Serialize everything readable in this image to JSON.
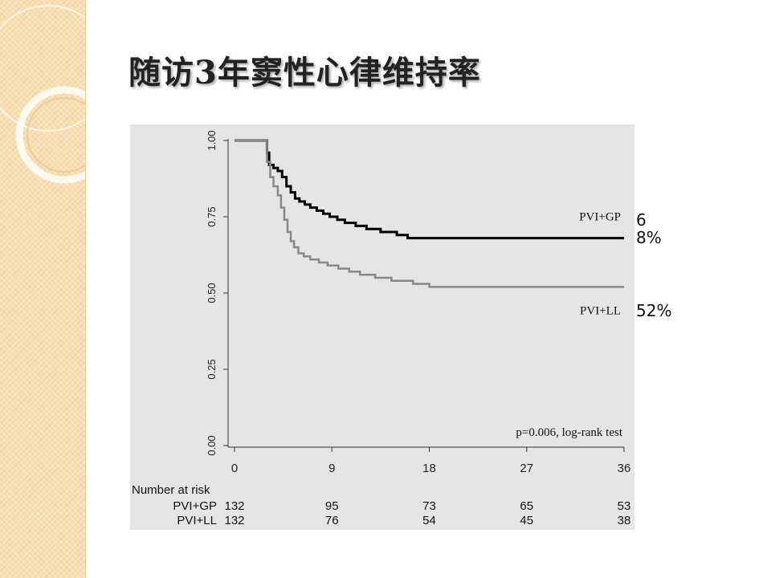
{
  "slide": {
    "title": "随访3年窦性心律维持率",
    "accent_color": "#f7dfb2"
  },
  "annotations": {
    "gp_percent": "68%",
    "ll_percent": "52%"
  },
  "chart_data": {
    "type": "line",
    "title": "",
    "xlabel": "",
    "ylabel": "",
    "xlim": [
      0,
      36
    ],
    "ylim": [
      0,
      1
    ],
    "x_ticks": [
      "0",
      "9",
      "18",
      "27",
      "36"
    ],
    "y_ticks": [
      "0.00",
      "0.25",
      "0.50",
      "0.75",
      "1.00"
    ],
    "background": "#e5e5e5",
    "grid": false,
    "annotation": "p=0.006, log-rank test",
    "series": [
      {
        "name": "PVI+GP",
        "color": "#000000",
        "points": [
          [
            0,
            1.0
          ],
          [
            3.0,
            1.0
          ],
          [
            3.0,
            0.96
          ],
          [
            3.2,
            0.92
          ],
          [
            3.6,
            0.91
          ],
          [
            4.0,
            0.9
          ],
          [
            4.4,
            0.88
          ],
          [
            4.8,
            0.85
          ],
          [
            5.2,
            0.83
          ],
          [
            5.6,
            0.81
          ],
          [
            6.0,
            0.8
          ],
          [
            6.5,
            0.79
          ],
          [
            7.0,
            0.78
          ],
          [
            7.6,
            0.77
          ],
          [
            8.2,
            0.76
          ],
          [
            8.8,
            0.75
          ],
          [
            9.5,
            0.74
          ],
          [
            10.2,
            0.73
          ],
          [
            11.2,
            0.72
          ],
          [
            12.2,
            0.71
          ],
          [
            13.5,
            0.7
          ],
          [
            15.0,
            0.69
          ],
          [
            16.0,
            0.68
          ],
          [
            36.0,
            0.68
          ]
        ]
      },
      {
        "name": "PVI+LL",
        "color": "#888888",
        "points": [
          [
            0,
            1.0
          ],
          [
            3.0,
            1.0
          ],
          [
            3.0,
            0.93
          ],
          [
            3.3,
            0.88
          ],
          [
            3.6,
            0.85
          ],
          [
            4.0,
            0.82
          ],
          [
            4.3,
            0.78
          ],
          [
            4.6,
            0.74
          ],
          [
            4.9,
            0.7
          ],
          [
            5.2,
            0.67
          ],
          [
            5.5,
            0.65
          ],
          [
            5.9,
            0.63
          ],
          [
            6.4,
            0.62
          ],
          [
            7.0,
            0.61
          ],
          [
            7.8,
            0.6
          ],
          [
            8.6,
            0.59
          ],
          [
            9.6,
            0.58
          ],
          [
            10.6,
            0.57
          ],
          [
            11.6,
            0.56
          ],
          [
            13.0,
            0.55
          ],
          [
            14.5,
            0.54
          ],
          [
            16.5,
            0.53
          ],
          [
            18.0,
            0.52
          ],
          [
            36.0,
            0.52
          ]
        ]
      }
    ],
    "risk_table": {
      "header": "Number at risk",
      "rows": [
        {
          "label": "PVI+GP",
          "values": [
            "132",
            "95",
            "73",
            "65",
            "53"
          ]
        },
        {
          "label": "PVI+LL",
          "values": [
            "132",
            "76",
            "54",
            "45",
            "38"
          ]
        }
      ]
    }
  }
}
